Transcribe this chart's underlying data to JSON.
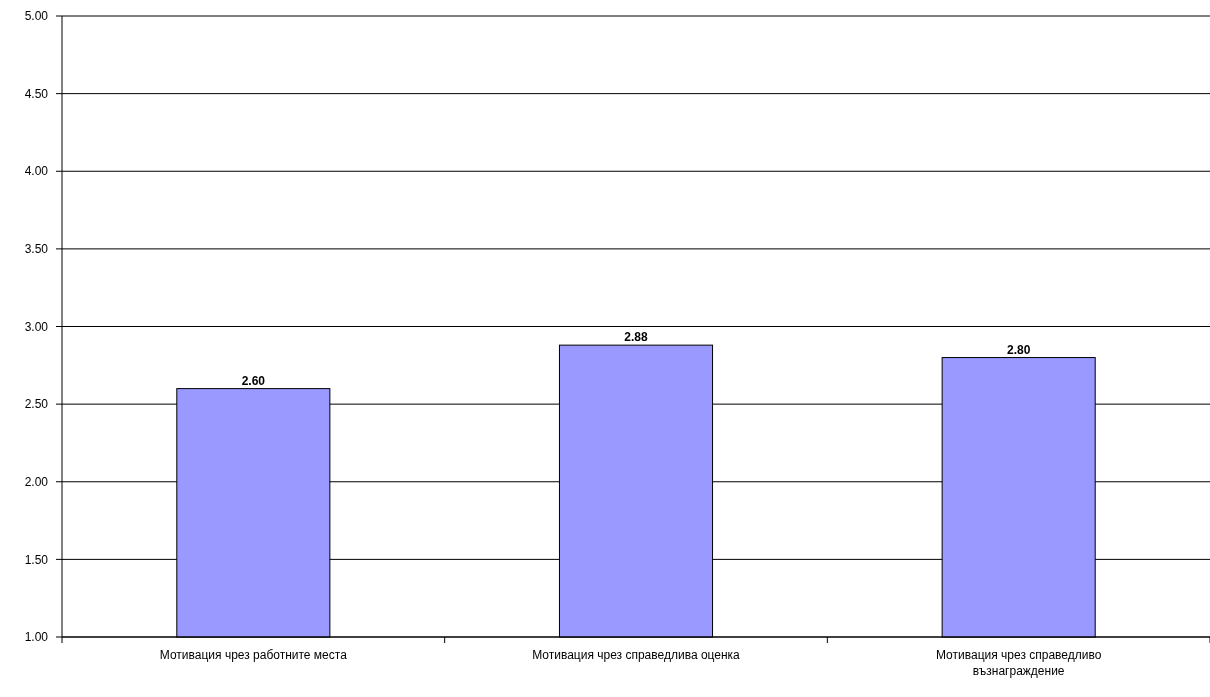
{
  "chart_data": {
    "type": "bar",
    "categories": [
      "Мотивация чрез работните места",
      "Мотивация чрез справедлива оценка",
      "Мотивация чрез справедливо възнаграждение"
    ],
    "values": [
      2.6,
      2.88,
      2.8
    ],
    "color": "#9999ff",
    "value_labels": [
      "2.60",
      "2.88",
      "2.80"
    ],
    "ylim": [
      1,
      5
    ],
    "yticks": [
      {
        "value": 1,
        "label": "1.00"
      },
      {
        "value": 1.5,
        "label": "1.50"
      },
      {
        "value": 2,
        "label": "2.00"
      },
      {
        "value": 2.5,
        "label": "2.50"
      },
      {
        "value": 3,
        "label": "3.00"
      },
      {
        "value": 3.5,
        "label": "3.50"
      },
      {
        "value": 4,
        "label": "4.00"
      },
      {
        "value": 4.5,
        "label": "4.50"
      },
      {
        "value": 5,
        "label": "5.00"
      }
    ],
    "grid": "y"
  }
}
